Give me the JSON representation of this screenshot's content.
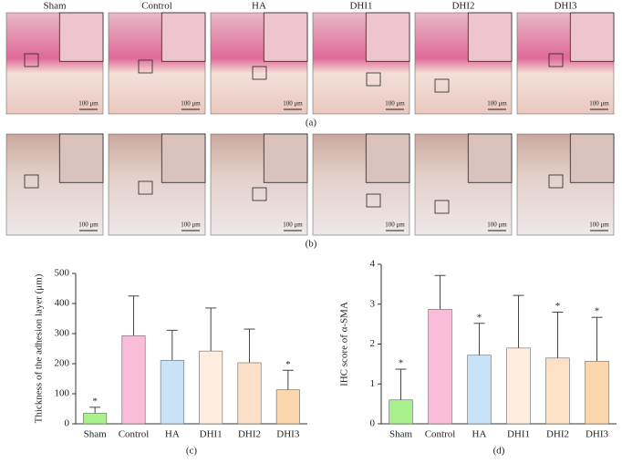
{
  "micrographs": {
    "columns": [
      "Sham",
      "Control",
      "HA",
      "DHI1",
      "DHI2",
      "DHI3"
    ],
    "scale_bar": "100 μm",
    "row_labels": [
      "(a)",
      "(b)"
    ]
  },
  "chart_data": [
    {
      "type": "bar",
      "ylabel": "Thickness of the adhesion layer (μm)",
      "panel_label": "(c)",
      "categories": [
        "Sham",
        "Control",
        "HA",
        "DHI1",
        "DHI2",
        "DHI3"
      ],
      "values": [
        35,
        293,
        211,
        242,
        203,
        113
      ],
      "errors": [
        20,
        132,
        100,
        143,
        112,
        65
      ],
      "significance": [
        "*",
        null,
        null,
        null,
        null,
        "*"
      ],
      "colors": [
        "#a8f08c",
        "#f9bdd9",
        "#c8e3f7",
        "#fdeee0",
        "#fde0c5",
        "#fcd6ad"
      ],
      "ylim": [
        0,
        500
      ],
      "yticks": [
        0,
        100,
        200,
        300,
        400,
        500
      ]
    },
    {
      "type": "bar",
      "ylabel": "IHC score of α-SMA",
      "panel_label": "(d)",
      "categories": [
        "Sham",
        "Control",
        "HA",
        "DHI1",
        "DHI2",
        "DHI3"
      ],
      "values": [
        0.6,
        2.87,
        1.72,
        1.9,
        1.65,
        1.57
      ],
      "errors": [
        0.77,
        0.85,
        0.8,
        1.32,
        1.15,
        1.1
      ],
      "significance": [
        "*",
        null,
        "*",
        null,
        "*",
        "*"
      ],
      "colors": [
        "#a8f08c",
        "#f9bdd9",
        "#c8e3f7",
        "#fdeee0",
        "#fde0c5",
        "#fcd6ad"
      ],
      "ylim": [
        0,
        4
      ],
      "yticks": [
        0,
        1,
        2,
        3,
        4
      ]
    }
  ]
}
